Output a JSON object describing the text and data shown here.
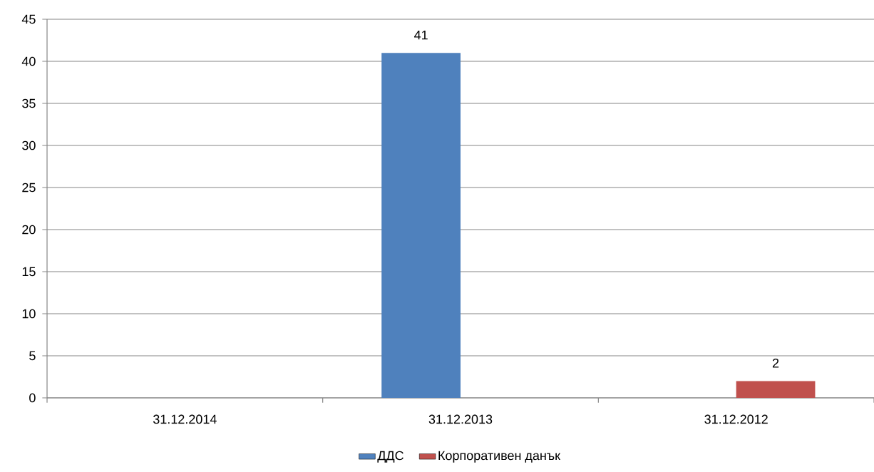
{
  "chart_data": {
    "type": "bar",
    "categories": [
      "31.12.2014",
      "31.12.2013",
      "31.12.2012"
    ],
    "series": [
      {
        "name": "ДДС",
        "color": "#4f81bd",
        "values": [
          null,
          41,
          null
        ]
      },
      {
        "name": "Корпоративен данък",
        "color": "#c0504d",
        "values": [
          null,
          null,
          2
        ]
      }
    ],
    "ylim": [
      0,
      45
    ],
    "yticks": [
      0,
      5,
      10,
      15,
      20,
      25,
      30,
      35,
      40,
      45
    ],
    "grid": "y",
    "legend": "bottom",
    "data_labels": true
  }
}
